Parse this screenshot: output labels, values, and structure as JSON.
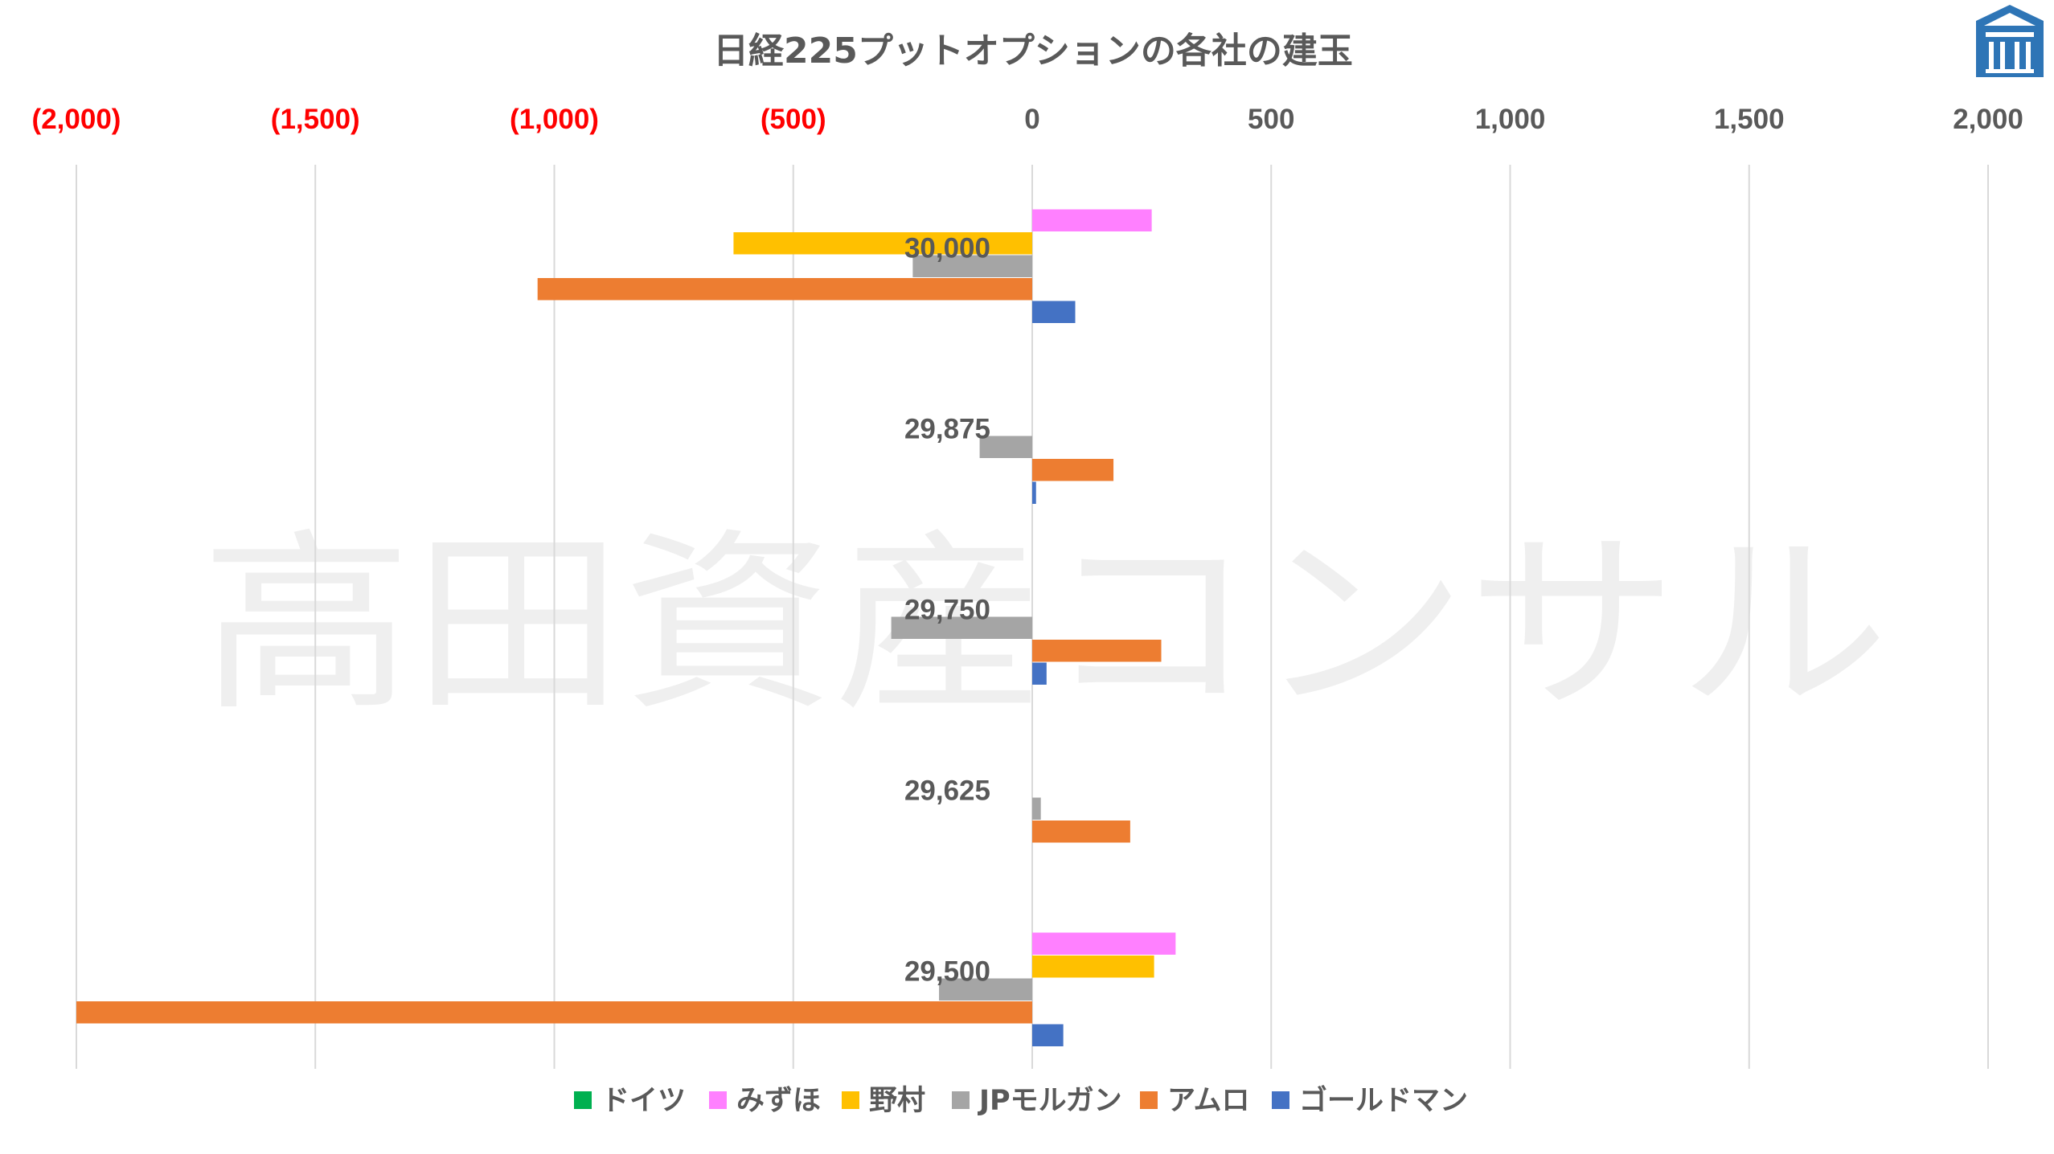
{
  "watermark": "高田資産コンサル",
  "logo": "takata-logo-icon",
  "colors": {
    "negative_tick": "#FF0000",
    "positive_tick": "#595959",
    "grid": "#D9D9D9",
    "text": "#595959"
  },
  "chart_data": {
    "type": "bar",
    "orientation": "horizontal",
    "title": "日経225プットオプションの各社の建玉",
    "xlim": [
      -2000,
      2000
    ],
    "axis_position": "top",
    "grid": true,
    "legend_position": "bottom",
    "ticks": [
      {
        "value": -2000,
        "label": "(2,000)"
      },
      {
        "value": -1500,
        "label": "(1,500)"
      },
      {
        "value": -1000,
        "label": "(1,000)"
      },
      {
        "value": -500,
        "label": "(500)"
      },
      {
        "value": 0,
        "label": "0"
      },
      {
        "value": 500,
        "label": "500"
      },
      {
        "value": 1000,
        "label": "1,000"
      },
      {
        "value": 1500,
        "label": "1,500"
      },
      {
        "value": 2000,
        "label": "2,000"
      }
    ],
    "categories": [
      "30,000",
      "29,875",
      "29,750",
      "29,625",
      "29,500"
    ],
    "series": [
      {
        "name": "ドイツ",
        "color": "#00B050",
        "values": [
          0,
          0,
          0,
          0,
          0
        ]
      },
      {
        "name": "みずほ",
        "color": "#FF80FF",
        "values": [
          250,
          0,
          0,
          0,
          300
        ]
      },
      {
        "name": "野村",
        "color": "#FFC000",
        "values": [
          -625,
          0,
          0,
          0,
          255
        ]
      },
      {
        "name": "JPモルガン",
        "color": "#A5A5A5",
        "values": [
          -250,
          -110,
          -295,
          18,
          -195
        ]
      },
      {
        "name": "アムロ",
        "color": "#ED7D31",
        "values": [
          -1035,
          170,
          270,
          205,
          -2000
        ]
      },
      {
        "name": "ゴールドマン",
        "color": "#4472C4",
        "values": [
          90,
          8,
          30,
          0,
          65
        ]
      }
    ]
  }
}
